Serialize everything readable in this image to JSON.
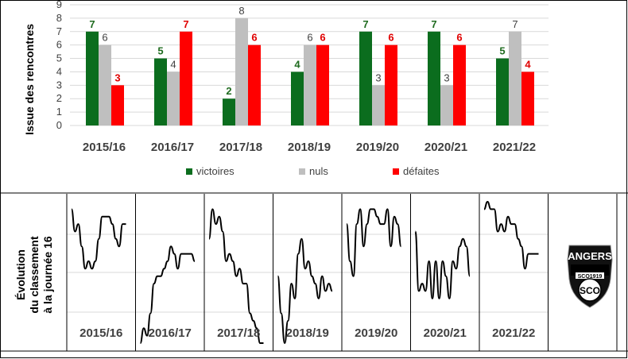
{
  "chart_data": [
    {
      "type": "bar",
      "ylabel": "Issue des rencontres",
      "ylim": [
        0,
        9
      ],
      "yticks": [
        0,
        1,
        2,
        3,
        4,
        5,
        6,
        7,
        8,
        9
      ],
      "grid": true,
      "legend_position": "bottom",
      "categories": [
        "2015/16",
        "2016/17",
        "2017/18",
        "2018/19",
        "2019/20",
        "2020/21",
        "2021/22"
      ],
      "series": [
        {
          "name": "victoires",
          "color": "#0b6d1e",
          "label_color": "#1f6b1f",
          "values": [
            7,
            5,
            2,
            4,
            7,
            7,
            5
          ]
        },
        {
          "name": "nuls",
          "color": "#bfbfbf",
          "label_color": "#404040",
          "values": [
            6,
            4,
            8,
            6,
            3,
            3,
            7
          ]
        },
        {
          "name": "défaites",
          "color": "#ff0000",
          "label_color": "#e00000",
          "values": [
            3,
            7,
            6,
            6,
            6,
            6,
            4
          ]
        }
      ]
    },
    {
      "type": "line",
      "ylabel_lines": [
        "Évolution",
        "du classement",
        "à la journée 16"
      ],
      "ylim": [
        20,
        1
      ],
      "grid": true,
      "panels": [
        {
          "label": "2015/16",
          "values": [
            2,
            5,
            4,
            7,
            10,
            9,
            10,
            9,
            6,
            3,
            3,
            3,
            4,
            6,
            7,
            4,
            4
          ]
        },
        {
          "label": "2016/17",
          "values": [
            20,
            18,
            19,
            16,
            12,
            11,
            11,
            10,
            9,
            7,
            8,
            10,
            8,
            8,
            8,
            8,
            9
          ]
        },
        {
          "label": "2017/18",
          "values": [
            6,
            2,
            4,
            3,
            5,
            9,
            8,
            9,
            11,
            10,
            12,
            12,
            16,
            17,
            18,
            20,
            20
          ]
        },
        {
          "label": "2018/19",
          "values": [
            11,
            16,
            20,
            17,
            12,
            14,
            8,
            6,
            10,
            9,
            11,
            12,
            14,
            11,
            13,
            12,
            13
          ]
        },
        {
          "label": "2019/20",
          "values": [
            4,
            9,
            11,
            4,
            2,
            7,
            4,
            2,
            2,
            3,
            4,
            4,
            2,
            7,
            3,
            4,
            7
          ]
        },
        {
          "label": "2020/21",
          "values": [
            5,
            13,
            12,
            13,
            9,
            14,
            9,
            14,
            9,
            11,
            14,
            9,
            10,
            7,
            6,
            7,
            11
          ]
        },
        {
          "label": "2021/22",
          "values": [
            2,
            1,
            2,
            2,
            5,
            4,
            5,
            3,
            4,
            4,
            6,
            7,
            10,
            8,
            8,
            8,
            8
          ]
        }
      ]
    }
  ],
  "logo": {
    "text": "ANGERS",
    "subtext": "SCO1919",
    "initials": "SCO"
  }
}
